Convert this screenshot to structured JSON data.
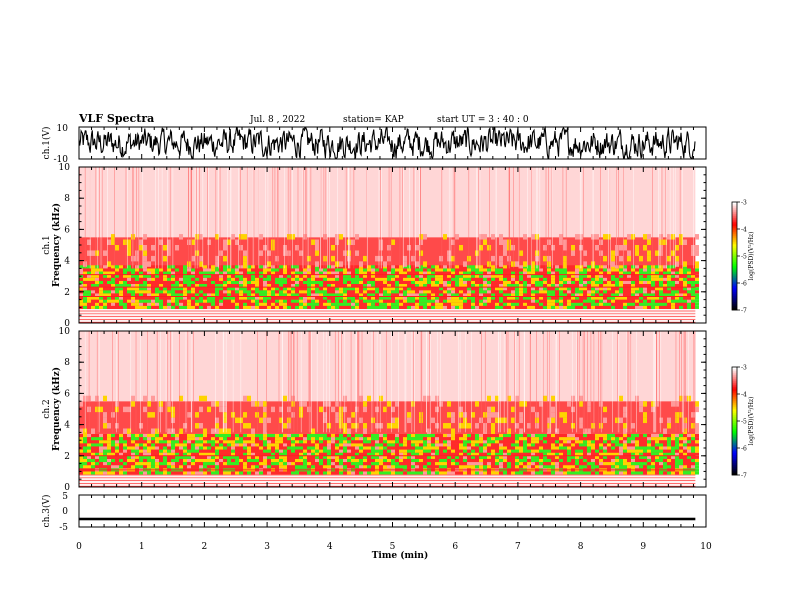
{
  "header": {
    "title": "VLF Spectra",
    "date": "Jul. 8 , 2022",
    "station": "station= KAP",
    "start": "start  UT  =   3 : 40 : 0"
  },
  "colors": {
    "axis": "#000000",
    "waveform": "#000000",
    "colormap": [
      "#000000",
      "#0000ff",
      "#00ff00",
      "#ffff00",
      "#ff0000",
      "#ffffff"
    ]
  },
  "chart_data": [
    {
      "type": "line",
      "name": "ch1-waveform",
      "ylabel": "ch.1(V)",
      "ylim": [
        -10,
        10
      ],
      "yticks": [
        "10",
        "-10"
      ],
      "x_range_min": [
        0,
        9.83
      ],
      "description_of_signal": "noisy waveform, mostly between -8 and 8 V"
    },
    {
      "type": "heatmap",
      "name": "ch1-spectrogram",
      "ylabel": "ch.1\nFrequency (kHz)",
      "ylabel_lines": [
        "ch.1",
        "Frequency  (kHz)"
      ],
      "ylim": [
        0,
        10
      ],
      "yticks": [
        "0",
        "2",
        "4",
        "6",
        "8",
        "10"
      ],
      "colorbar": {
        "label": "log(PSD)(V²/Hz)",
        "range": [
          -7,
          -3
        ],
        "ticks": [
          "-3",
          "-4",
          "-5",
          "-6",
          "-7"
        ]
      },
      "bands": [
        {
          "f_low": 0.0,
          "f_high": 0.9,
          "color": "white-red-stripes"
        },
        {
          "f_low": 0.9,
          "f_high": 3.6,
          "color": "green-yellow-red"
        },
        {
          "f_low": 3.6,
          "f_high": 5.5,
          "color": "red"
        },
        {
          "f_low": 5.5,
          "f_high": 10.0,
          "color": "light-red-white"
        }
      ],
      "hlines_khz": [
        1.7,
        2.3,
        3.1
      ]
    },
    {
      "type": "heatmap",
      "name": "ch2-spectrogram",
      "ylabel_lines": [
        "ch.2",
        "Frequency  (kHz)"
      ],
      "ylim": [
        0,
        10
      ],
      "yticks": [
        "0",
        "2",
        "4",
        "6",
        "8",
        "10"
      ],
      "colorbar": {
        "label": "log(PSD)(V²/Hz)",
        "range": [
          -7,
          -3
        ],
        "ticks": [
          "-3",
          "-4",
          "-5",
          "-6",
          "-7"
        ]
      },
      "bands": [
        {
          "f_low": 0.0,
          "f_high": 0.8,
          "color": "white-red-stripes"
        },
        {
          "f_low": 0.8,
          "f_high": 3.4,
          "color": "green-yellow-red"
        },
        {
          "f_low": 3.4,
          "f_high": 5.5,
          "color": "red"
        },
        {
          "f_low": 5.5,
          "f_high": 10.0,
          "color": "light-red-white"
        }
      ],
      "hlines_khz": [
        1.1,
        2.0
      ]
    },
    {
      "type": "line",
      "name": "ch3-waveform",
      "ylabel": "ch.3(V)",
      "ylim": [
        -5,
        5
      ],
      "yticks": [
        "5",
        "0",
        "-5"
      ],
      "level_v": -2.5
    }
  ],
  "xaxis": {
    "label": "Time  (min)",
    "range": [
      0,
      10
    ],
    "ticks": [
      "0",
      "1",
      "2",
      "3",
      "4",
      "5",
      "6",
      "7",
      "8",
      "9",
      "10"
    ],
    "data_end_min": 9.83
  }
}
